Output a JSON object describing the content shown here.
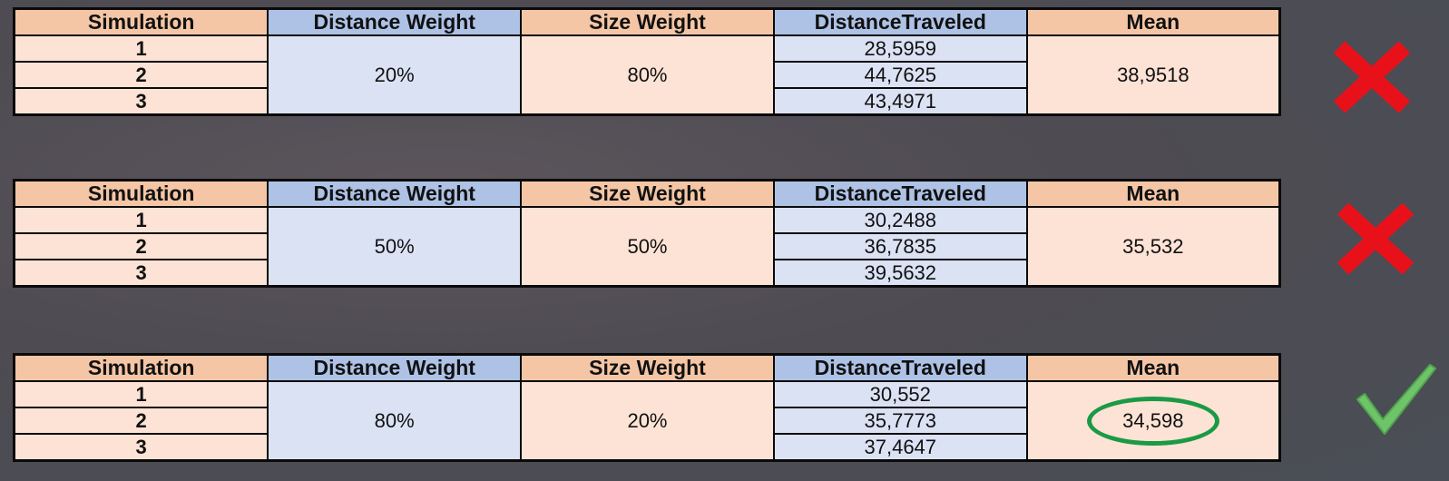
{
  "headers": {
    "simulation": "Simulation",
    "distance_weight": "Distance Weight",
    "size_weight": "Size Weight",
    "distance_traveled": "DistanceTraveled",
    "mean": "Mean"
  },
  "tables": [
    {
      "distance_weight": "20%",
      "size_weight": "80%",
      "rows": [
        {
          "simulation": "1",
          "distance_traveled": "28,5959"
        },
        {
          "simulation": "2",
          "distance_traveled": "44,7625"
        },
        {
          "simulation": "3",
          "distance_traveled": "43,4971"
        }
      ],
      "mean": "38,9518",
      "result_icon": "red-x-icon",
      "result_color": "#e8111a"
    },
    {
      "distance_weight": "50%",
      "size_weight": "50%",
      "rows": [
        {
          "simulation": "1",
          "distance_traveled": "30,2488"
        },
        {
          "simulation": "2",
          "distance_traveled": "36,7835"
        },
        {
          "simulation": "3",
          "distance_traveled": "39,5632"
        }
      ],
      "mean": "35,532",
      "result_icon": "red-x-icon",
      "result_color": "#e8111a"
    },
    {
      "distance_weight": "80%",
      "size_weight": "20%",
      "rows": [
        {
          "simulation": "1",
          "distance_traveled": "30,552"
        },
        {
          "simulation": "2",
          "distance_traveled": "35,7773"
        },
        {
          "simulation": "3",
          "distance_traveled": "37,4647"
        }
      ],
      "mean": "34,598",
      "mean_highlighted": true,
      "highlight_color": "#1a9a46",
      "result_icon": "green-check-icon",
      "result_color": "#6fc46a"
    }
  ]
}
